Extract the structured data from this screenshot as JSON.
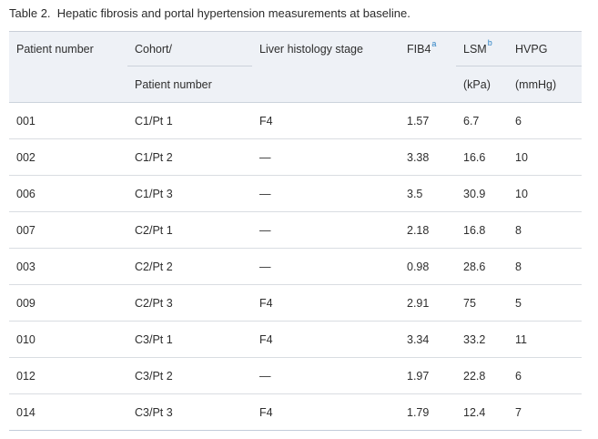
{
  "caption": "Table 2.  Hepatic fibrosis and portal hypertension measurements at baseline.",
  "columns": {
    "patient_number": "Patient number",
    "cohort_line1": "Cohort/",
    "cohort_line2": "Patient number",
    "histology": "Liver histology stage",
    "fib4": "FIB4",
    "fib4_footnote": "a",
    "lsm": "LSM",
    "lsm_footnote": "b",
    "lsm_unit": "(kPa)",
    "hvpg": "HVPG",
    "hvpg_unit": "(mmHg)"
  },
  "rows": [
    {
      "patient": "001",
      "cohort": "C1/Pt 1",
      "histology": "F4",
      "fib4": "1.57",
      "lsm": "6.7",
      "hvpg": "6"
    },
    {
      "patient": "002",
      "cohort": "C1/Pt 2",
      "histology": "—",
      "fib4": "3.38",
      "lsm": "16.6",
      "hvpg": "10"
    },
    {
      "patient": "006",
      "cohort": "C1/Pt 3",
      "histology": "—",
      "fib4": "3.5",
      "lsm": "30.9",
      "hvpg": "10"
    },
    {
      "patient": "007",
      "cohort": "C2/Pt 1",
      "histology": "—",
      "fib4": "2.18",
      "lsm": "16.8",
      "hvpg": "8"
    },
    {
      "patient": "003",
      "cohort": "C2/Pt 2",
      "histology": "—",
      "fib4": "0.98",
      "lsm": "28.6",
      "hvpg": "8"
    },
    {
      "patient": "009",
      "cohort": "C2/Pt 3",
      "histology": "F4",
      "fib4": "2.91",
      "lsm": "75",
      "hvpg": "5"
    },
    {
      "patient": "010",
      "cohort": "C3/Pt 1",
      "histology": "F4",
      "fib4": "3.34",
      "lsm": "33.2",
      "hvpg": "11"
    },
    {
      "patient": "012",
      "cohort": "C3/Pt 2",
      "histology": "—",
      "fib4": "1.97",
      "lsm": "22.8",
      "hvpg": "6"
    },
    {
      "patient": "014",
      "cohort": "C3/Pt 3",
      "histology": "F4",
      "fib4": "1.79",
      "lsm": "12.4",
      "hvpg": "7"
    }
  ],
  "colors": {
    "header_bg": "#eef1f6",
    "footnote_link": "#2e83c5",
    "row_divider": "#d9dde2",
    "table_top_border": "#c9cfd8",
    "header_divider": "#ccd3dc",
    "table_bottom_border": "#c3ccda",
    "text": "#2e2e2e"
  }
}
